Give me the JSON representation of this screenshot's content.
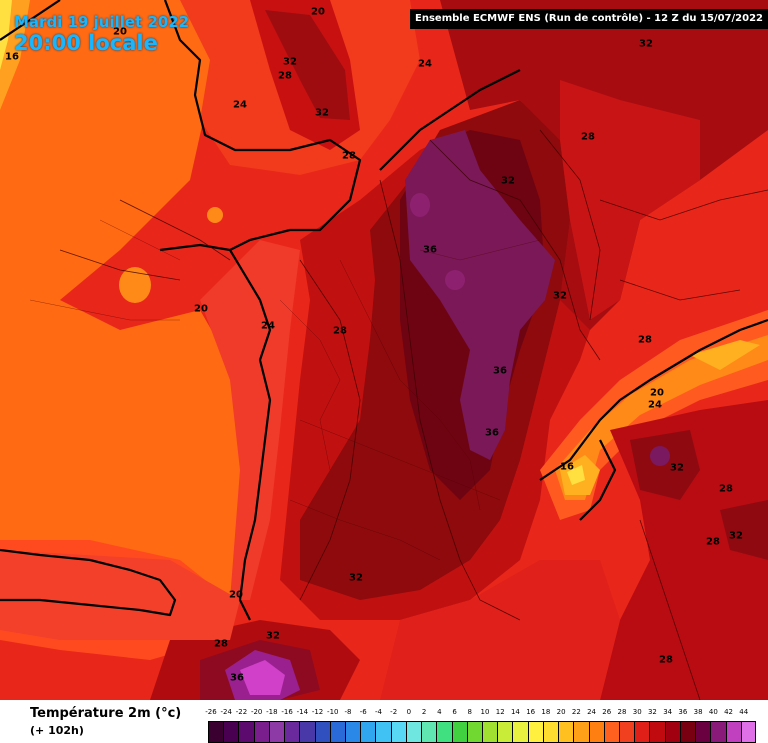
{
  "header": {
    "date": "Mardi 19 juillet 2022",
    "time": "20:00 locale",
    "run": "Ensemble ECMWF ENS  (Run de contrôle)  -  12 Z du 15/07/2022"
  },
  "footer": {
    "parameter": "Température 2m (°c)",
    "lead": "(+ 102h)"
  },
  "legend": {
    "ticks": [
      "-26",
      "-24",
      "-22",
      "-20",
      "-18",
      "-16",
      "-14",
      "-12",
      "-10",
      "-8",
      "-6",
      "-4",
      "-2",
      "0",
      "2",
      "4",
      "6",
      "8",
      "10",
      "12",
      "14",
      "16",
      "18",
      "20",
      "22",
      "24",
      "26",
      "28",
      "30",
      "32",
      "34",
      "36",
      "38",
      "40",
      "42",
      "44"
    ],
    "colors": [
      "#3a0030",
      "#4a0050",
      "#5c0a6e",
      "#7a1e8e",
      "#8e3aa6",
      "#6a2a9e",
      "#4838a8",
      "#3050c0",
      "#2a6ad8",
      "#2a88e8",
      "#30a6f0",
      "#40c2f4",
      "#58d8f4",
      "#70e6e0",
      "#60e6b0",
      "#40e080",
      "#40d040",
      "#70d830",
      "#a0e030",
      "#c8ec38",
      "#e8f040",
      "#fff040",
      "#ffdc30",
      "#ffc020",
      "#ffa018",
      "#ff8010",
      "#ff6020",
      "#f04020",
      "#e02018",
      "#c00a10",
      "#a00010",
      "#780010",
      "#6a0040",
      "#8a1a7a",
      "#c040c0",
      "#e070e8"
    ]
  },
  "map_labels": [
    {
      "text": "20"
    },
    {
      "text": "20"
    },
    {
      "text": "16"
    },
    {
      "text": "32"
    },
    {
      "text": "28"
    },
    {
      "text": "32"
    },
    {
      "text": "24"
    },
    {
      "text": "28"
    },
    {
      "text": "24"
    },
    {
      "text": "32"
    },
    {
      "text": "28"
    },
    {
      "text": "32"
    },
    {
      "text": "36"
    },
    {
      "text": "32"
    },
    {
      "text": "20"
    },
    {
      "text": "24"
    },
    {
      "text": "28"
    },
    {
      "text": "36"
    },
    {
      "text": "36"
    },
    {
      "text": "28"
    },
    {
      "text": "20"
    },
    {
      "text": "24"
    },
    {
      "text": "16"
    },
    {
      "text": "32"
    },
    {
      "text": "28"
    },
    {
      "text": "32"
    },
    {
      "text": "28"
    },
    {
      "text": "32"
    },
    {
      "text": "20"
    },
    {
      "text": "28"
    },
    {
      "text": "32"
    },
    {
      "text": "36"
    },
    {
      "text": "28"
    }
  ]
}
